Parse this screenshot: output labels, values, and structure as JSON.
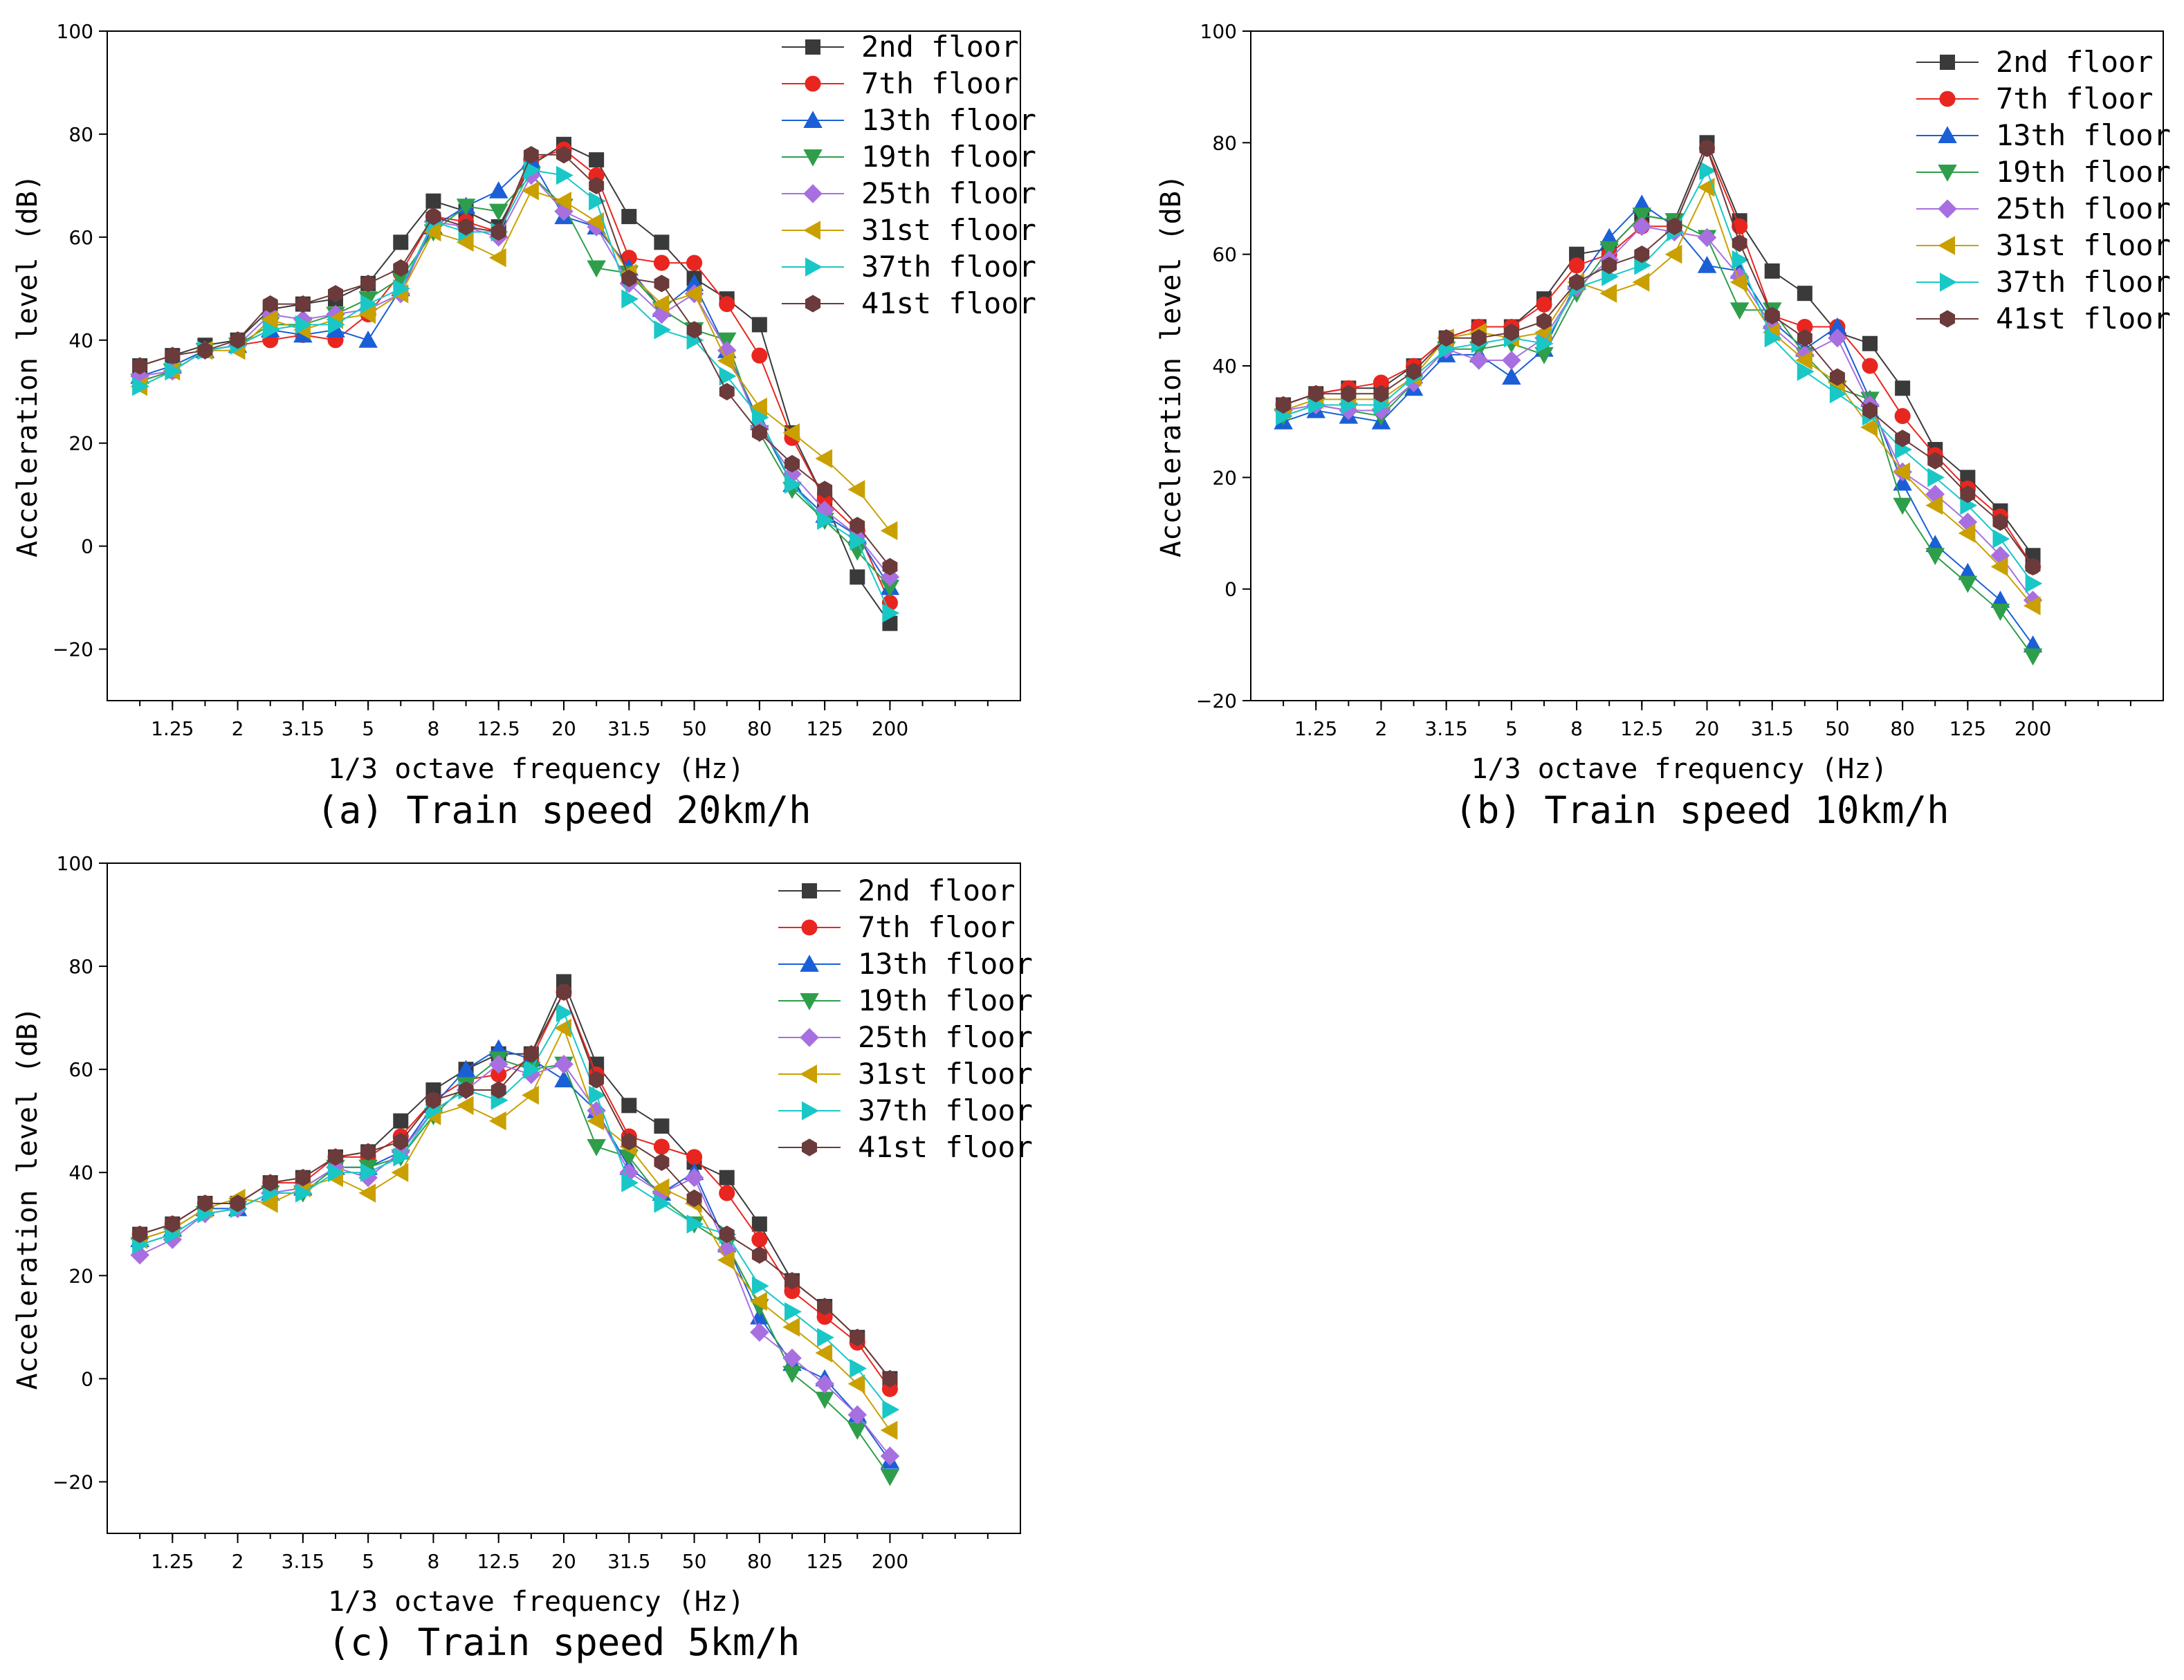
{
  "chart_data": [
    {
      "type": "line",
      "caption": "(a)  Train speed 20km/h",
      "xlabel": "1/3 octave frequency (Hz)",
      "ylabel": "Acceleration level (dB)",
      "ylim": [
        -30,
        100
      ],
      "yticks": [
        -20,
        0,
        20,
        40,
        60,
        80,
        100
      ],
      "xtick_labels": [
        "1.25",
        "2",
        "3.15",
        "5",
        "8",
        "12.5",
        "20",
        "31.5",
        "50",
        "80",
        "125",
        "200"
      ],
      "x": [
        "1",
        "1.25",
        "1.6",
        "2",
        "2.5",
        "3.15",
        "4",
        "5",
        "6.3",
        "8",
        "10",
        "12.5",
        "16",
        "20",
        "25",
        "31.5",
        "40",
        "50",
        "63",
        "80",
        "100",
        "125",
        "160",
        "200"
      ],
      "legend_position": "top-right",
      "grid": false,
      "series": [
        {
          "name": "2nd floor",
          "color": "#3a3a3a",
          "marker": "square",
          "values": [
            35,
            37,
            39,
            40,
            46,
            47,
            48,
            51,
            59,
            67,
            65,
            62,
            74,
            78,
            75,
            64,
            59,
            52,
            48,
            43,
            22,
            9,
            -6,
            -15
          ]
        },
        {
          "name": "7th floor",
          "color": "#e8261f",
          "marker": "circle",
          "values": [
            32,
            34,
            38,
            39,
            40,
            41,
            40,
            45,
            53,
            64,
            63,
            61,
            75,
            77,
            72,
            56,
            55,
            55,
            47,
            37,
            21,
            9,
            3,
            -11
          ]
        },
        {
          "name": "13th floor",
          "color": "#1a5fd6",
          "marker": "triangle-up",
          "values": [
            33,
            35,
            38,
            39,
            42,
            41,
            42,
            40,
            50,
            62,
            66,
            69,
            75,
            64,
            62,
            54,
            46,
            51,
            38,
            24,
            12,
            6,
            2,
            -8
          ]
        },
        {
          "name": "19th floor",
          "color": "#2e9e4a",
          "marker": "triangle-down",
          "values": [
            32,
            34,
            38,
            39,
            43,
            43,
            45,
            48,
            52,
            61,
            66,
            65,
            72,
            66,
            54,
            53,
            46,
            42,
            40,
            22,
            11,
            5,
            -1,
            -8
          ]
        },
        {
          "name": "25th floor",
          "color": "#a86fe0",
          "marker": "diamond",
          "values": [
            33,
            34,
            38,
            39,
            45,
            44,
            45,
            46,
            49,
            63,
            62,
            60,
            72,
            65,
            62,
            51,
            45,
            49,
            38,
            23,
            14,
            7,
            2,
            -6
          ]
        },
        {
          "name": "31st floor",
          "color": "#c9a000",
          "marker": "triangle-left",
          "values": [
            31,
            34,
            38,
            38,
            44,
            42,
            44,
            45,
            49,
            61,
            59,
            56,
            69,
            67,
            63,
            53,
            47,
            49,
            36,
            27,
            22,
            17,
            11,
            3
          ]
        },
        {
          "name": "37th floor",
          "color": "#19c7c7",
          "marker": "triangle-right",
          "values": [
            31,
            34,
            38,
            39,
            42,
            43,
            43,
            47,
            50,
            63,
            61,
            61,
            73,
            72,
            67,
            48,
            42,
            40,
            33,
            25,
            12,
            5,
            1,
            -13
          ]
        },
        {
          "name": "41st floor",
          "color": "#6b3a3a",
          "marker": "hexagon",
          "values": [
            35,
            37,
            38,
            40,
            47,
            47,
            49,
            51,
            54,
            64,
            62,
            61,
            76,
            76,
            70,
            52,
            51,
            42,
            30,
            22,
            16,
            11,
            4,
            -4
          ]
        }
      ]
    },
    {
      "type": "line",
      "caption": "(b)  Train speed 10km/h",
      "xlabel": "1/3 octave frequency (Hz)",
      "ylabel": "Acceleration level (dB)",
      "ylim": [
        -20,
        100
      ],
      "yticks": [
        -20,
        0,
        20,
        40,
        60,
        80,
        100
      ],
      "xtick_labels": [
        "1.25",
        "2",
        "3.15",
        "5",
        "8",
        "12.5",
        "20",
        "31.5",
        "50",
        "80",
        "125",
        "200"
      ],
      "x": [
        "1",
        "1.25",
        "1.6",
        "2",
        "2.5",
        "3.15",
        "4",
        "5",
        "6.3",
        "8",
        "10",
        "12.5",
        "16",
        "20",
        "25",
        "31.5",
        "40",
        "50",
        "63",
        "80",
        "100",
        "125",
        "160",
        "200"
      ],
      "legend_position": "top-right",
      "grid": false,
      "series": [
        {
          "name": "2nd floor",
          "color": "#3a3a3a",
          "marker": "square",
          "values": [
            33,
            35,
            36,
            36,
            40,
            45,
            47,
            47,
            52,
            60,
            61,
            67,
            66,
            80,
            66,
            57,
            53,
            46,
            44,
            36,
            25,
            20,
            14,
            6
          ]
        },
        {
          "name": "7th floor",
          "color": "#e8261f",
          "marker": "circle",
          "values": [
            33,
            35,
            36,
            37,
            40,
            45,
            47,
            47,
            51,
            58,
            60,
            65,
            65,
            79,
            65,
            49,
            47,
            47,
            40,
            31,
            24,
            18,
            13,
            4
          ]
        },
        {
          "name": "13th floor",
          "color": "#1a5fd6",
          "marker": "triangle-up",
          "values": [
            30,
            32,
            31,
            30,
            36,
            42,
            42,
            38,
            43,
            55,
            63,
            69,
            65,
            58,
            57,
            48,
            43,
            47,
            34,
            19,
            8,
            3,
            -2,
            -10
          ]
        },
        {
          "name": "19th floor",
          "color": "#2e9e4a",
          "marker": "triangle-down",
          "values": [
            31,
            33,
            32,
            31,
            37,
            43,
            43,
            44,
            42,
            53,
            61,
            67,
            66,
            63,
            50,
            50,
            42,
            36,
            34,
            15,
            6,
            1,
            -4,
            -12
          ]
        },
        {
          "name": "25th floor",
          "color": "#a86fe0",
          "marker": "diamond",
          "values": [
            32,
            33,
            32,
            32,
            37,
            43,
            41,
            41,
            45,
            54,
            59,
            65,
            64,
            63,
            56,
            47,
            42,
            45,
            33,
            21,
            17,
            12,
            6,
            -2
          ]
        },
        {
          "name": "31st floor",
          "color": "#c9a000",
          "marker": "triangle-left",
          "values": [
            32,
            34,
            34,
            34,
            38,
            45,
            46,
            45,
            46,
            55,
            53,
            55,
            60,
            72,
            55,
            46,
            41,
            37,
            29,
            21,
            15,
            10,
            4,
            -3
          ]
        },
        {
          "name": "37th floor",
          "color": "#19c7c7",
          "marker": "triangle-right",
          "values": [
            31,
            33,
            33,
            33,
            38,
            43,
            44,
            45,
            44,
            54,
            56,
            58,
            64,
            75,
            59,
            45,
            39,
            35,
            31,
            25,
            20,
            15,
            9,
            1
          ]
        },
        {
          "name": "41st floor",
          "color": "#6b3a3a",
          "marker": "hexagon",
          "values": [
            33,
            35,
            35,
            35,
            39,
            45,
            45,
            46,
            48,
            55,
            58,
            60,
            65,
            79,
            62,
            49,
            45,
            38,
            32,
            27,
            23,
            17,
            12,
            4
          ]
        }
      ]
    },
    {
      "type": "line",
      "caption": "(c)  Train speed 5km/h",
      "xlabel": "1/3 octave frequency (Hz)",
      "ylabel": "Acceleration level (dB)",
      "ylim": [
        -30,
        100
      ],
      "yticks": [
        -20,
        0,
        20,
        40,
        60,
        80,
        100
      ],
      "xtick_labels": [
        "1.25",
        "2",
        "3.15",
        "5",
        "8",
        "12.5",
        "20",
        "31.5",
        "50",
        "80",
        "125",
        "200"
      ],
      "x": [
        "1",
        "1.25",
        "1.6",
        "2",
        "2.5",
        "3.15",
        "4",
        "5",
        "6.3",
        "8",
        "10",
        "12.5",
        "16",
        "20",
        "25",
        "31.5",
        "40",
        "50",
        "63",
        "80",
        "100",
        "125",
        "160",
        "200"
      ],
      "legend_position": "top-right",
      "grid": false,
      "series": [
        {
          "name": "2nd floor",
          "color": "#3a3a3a",
          "marker": "square",
          "values": [
            28,
            30,
            34,
            34,
            38,
            39,
            43,
            44,
            50,
            56,
            60,
            63,
            63,
            77,
            61,
            53,
            49,
            42,
            39,
            30,
            19,
            14,
            8,
            0
          ]
        },
        {
          "name": "7th floor",
          "color": "#e8261f",
          "marker": "circle",
          "values": [
            28,
            30,
            34,
            34,
            38,
            38,
            43,
            43,
            47,
            54,
            58,
            59,
            62,
            75,
            59,
            47,
            45,
            43,
            36,
            27,
            17,
            12,
            7,
            -2
          ]
        },
        {
          "name": "13th floor",
          "color": "#1a5fd6",
          "marker": "triangle-up",
          "values": [
            27,
            29,
            33,
            33,
            36,
            37,
            41,
            41,
            44,
            53,
            60,
            64,
            62,
            58,
            52,
            41,
            36,
            40,
            26,
            12,
            3,
            0,
            -7,
            -16
          ]
        },
        {
          "name": "19th floor",
          "color": "#2e9e4a",
          "marker": "triangle-down",
          "values": [
            26,
            28,
            32,
            33,
            36,
            36,
            41,
            41,
            43,
            51,
            57,
            62,
            60,
            61,
            45,
            43,
            35,
            30,
            26,
            14,
            1,
            -4,
            -10,
            -19
          ]
        },
        {
          "name": "25th floor",
          "color": "#a86fe0",
          "marker": "diamond",
          "values": [
            24,
            27,
            32,
            33,
            36,
            37,
            41,
            39,
            44,
            52,
            56,
            61,
            59,
            61,
            52,
            40,
            36,
            39,
            25,
            9,
            4,
            -1,
            -7,
            -15
          ]
        },
        {
          "name": "31st floor",
          "color": "#c9a000",
          "marker": "triangle-left",
          "values": [
            27,
            29,
            33,
            35,
            34,
            37,
            39,
            36,
            40,
            51,
            53,
            50,
            55,
            68,
            50,
            45,
            37,
            34,
            23,
            15,
            10,
            5,
            -1,
            -10
          ]
        },
        {
          "name": "37th floor",
          "color": "#19c7c7",
          "marker": "triangle-right",
          "values": [
            26,
            28,
            32,
            33,
            36,
            36,
            40,
            40,
            43,
            52,
            56,
            54,
            60,
            71,
            55,
            38,
            34,
            30,
            28,
            18,
            13,
            8,
            2,
            -6
          ]
        },
        {
          "name": "41st floor",
          "color": "#6b3a3a",
          "marker": "hexagon",
          "values": [
            28,
            30,
            34,
            34,
            38,
            39,
            43,
            44,
            46,
            54,
            56,
            56,
            63,
            75,
            58,
            46,
            42,
            35,
            28,
            24,
            19,
            14,
            8,
            0
          ]
        }
      ]
    }
  ]
}
